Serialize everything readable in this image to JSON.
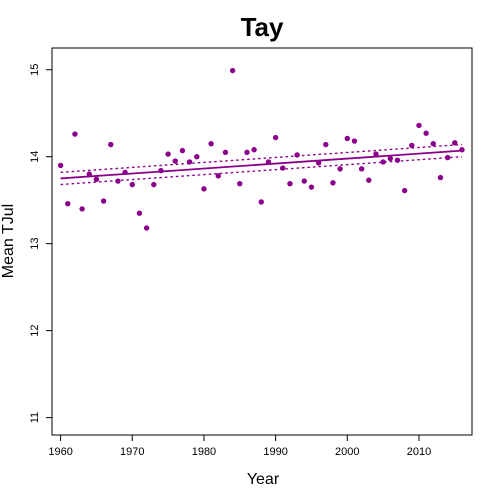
{
  "chart_data": {
    "type": "scatter",
    "title": "Tay",
    "xlabel": "Year",
    "ylabel": "Mean TJul",
    "xlim": [
      1958.8,
      2017.4
    ],
    "ylim": [
      10.8,
      15.25
    ],
    "xticks": [
      1960,
      1970,
      1980,
      1990,
      2000,
      2010
    ],
    "yticks": [
      11,
      12,
      13,
      14,
      15
    ],
    "point_color": "#8B008B",
    "line_color": "#8B008B",
    "grid": false,
    "x": [
      1960,
      1961,
      1962,
      1963,
      1964,
      1965,
      1966,
      1967,
      1968,
      1969,
      1970,
      1971,
      1972,
      1973,
      1974,
      1975,
      1976,
      1977,
      1978,
      1979,
      1980,
      1981,
      1982,
      1983,
      1984,
      1985,
      1986,
      1987,
      1988,
      1989,
      1990,
      1991,
      1992,
      1993,
      1994,
      1995,
      1996,
      1997,
      1998,
      1999,
      2000,
      2001,
      2002,
      2003,
      2004,
      2005,
      2006,
      2007,
      2008,
      2009,
      2010,
      2011,
      2012,
      2013,
      2014,
      2015,
      2016
    ],
    "y": [
      13.9,
      13.46,
      14.26,
      13.4,
      13.8,
      13.74,
      13.49,
      14.14,
      13.72,
      13.82,
      13.68,
      13.35,
      13.18,
      13.68,
      13.84,
      14.03,
      13.95,
      14.07,
      13.94,
      14.0,
      13.63,
      14.15,
      13.78,
      14.05,
      14.99,
      13.69,
      14.05,
      14.08,
      13.48,
      13.94,
      14.22,
      13.87,
      13.69,
      14.02,
      13.72,
      13.65,
      13.93,
      14.14,
      13.7,
      13.86,
      14.21,
      14.18,
      13.86,
      13.73,
      14.03,
      13.94,
      13.98,
      13.96,
      13.61,
      14.13,
      14.36,
      14.27,
      14.15,
      13.76,
      13.99,
      14.16,
      14.08
    ],
    "fit": {
      "x": [
        1960,
        2016
      ],
      "y": [
        13.75,
        14.07
      ]
    },
    "ci_upper": {
      "x": [
        1960,
        2016
      ],
      "y": [
        13.82,
        14.14
      ]
    },
    "ci_lower": {
      "x": [
        1960,
        2016
      ],
      "y": [
        13.68,
        14.0
      ]
    }
  }
}
